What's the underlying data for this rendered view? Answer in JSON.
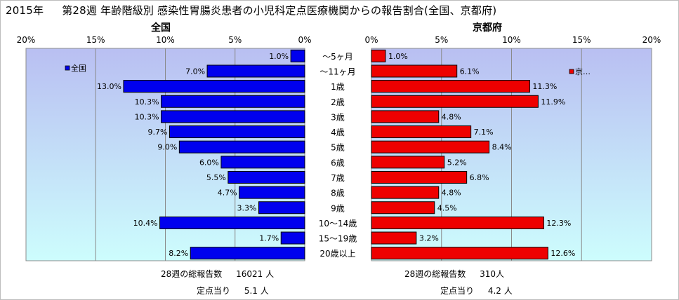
{
  "title": {
    "year": "2015年",
    "main": "第28週 年齢階級別 感染性胃腸炎患者の小児科定点医療機関からの報告割合(全国、京都府)"
  },
  "colors": {
    "national_bar": "#0000ee",
    "kyoto_bar": "#ee0000",
    "plot_top": "#b9bff2",
    "plot_bottom": "#cdfdfd",
    "gridline": "#8a8a8a"
  },
  "chart_data": [
    {
      "type": "bar",
      "orientation": "horizontal",
      "direction": "right-to-left",
      "title": "全国",
      "legend": "全国",
      "legend_position": "top-left",
      "grid": true,
      "xlim": [
        0,
        20
      ],
      "ticks": [
        "20%",
        "15%",
        "10%",
        "5%",
        "0%"
      ],
      "tick_values": [
        20,
        15,
        10,
        5,
        0
      ],
      "categories": [
        "～5ヶ月",
        "～11ヶ月",
        "1歳",
        "2歳",
        "3歳",
        "4歳",
        "5歳",
        "6歳",
        "7歳",
        "8歳",
        "9歳",
        "10～14歳",
        "15～19歳",
        "20歳以上"
      ],
      "values": [
        1.0,
        7.0,
        13.0,
        10.3,
        10.3,
        9.7,
        9.0,
        6.0,
        5.5,
        4.7,
        3.3,
        10.4,
        1.7,
        8.2
      ],
      "labels": [
        "1.0%",
        "7.0%",
        "13.0%",
        "10.3%",
        "10.3%",
        "9.7%",
        "9.0%",
        "6.0%",
        "5.5%",
        "4.7%",
        "3.3%",
        "10.4%",
        "1.7%",
        "8.2%"
      ]
    },
    {
      "type": "bar",
      "orientation": "horizontal",
      "direction": "left-to-right",
      "title": "京都府",
      "legend": "京…",
      "legend_position": "top-right",
      "grid": true,
      "xlim": [
        0,
        20
      ],
      "ticks": [
        "0%",
        "5%",
        "10%",
        "15%",
        "20%"
      ],
      "tick_values": [
        0,
        5,
        10,
        15,
        20
      ],
      "categories": [
        "～5ヶ月",
        "～11ヶ月",
        "1歳",
        "2歳",
        "3歳",
        "4歳",
        "5歳",
        "6歳",
        "7歳",
        "8歳",
        "9歳",
        "10～14歳",
        "15～19歳",
        "20歳以上"
      ],
      "values": [
        1.0,
        6.1,
        11.3,
        11.9,
        4.8,
        7.1,
        8.4,
        5.2,
        6.8,
        4.8,
        4.5,
        12.3,
        3.2,
        12.6
      ],
      "labels": [
        "1.0%",
        "6.1%",
        "11.3%",
        "11.9%",
        "4.8%",
        "7.1%",
        "8.4%",
        "5.2%",
        "6.8%",
        "4.8%",
        "4.5%",
        "12.3%",
        "3.2%",
        "12.6%"
      ]
    }
  ],
  "footer": {
    "national_total_label": "28週の総報告数",
    "national_total_value": "16021 人",
    "national_per_label": "定点当り",
    "national_per_value": "5.1 人",
    "kyoto_total_label": "28週の総報告数",
    "kyoto_total_value": "310人",
    "kyoto_per_label": "定点当り",
    "kyoto_per_value": "4.2 人"
  }
}
